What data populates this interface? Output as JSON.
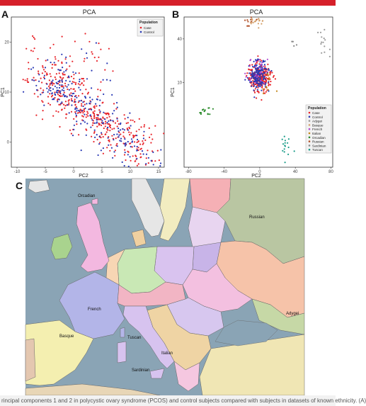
{
  "figure": {
    "panel_a_letter": "A",
    "panel_b_letter": "B",
    "panel_c_letter": "C",
    "caption": "rincipal components 1 and 2 in polycystic ovary syndrome (PCOS) and control subjects compared with subjects in datasets of known ethnicity. (A)"
  },
  "colors": {
    "case": "#e8242a",
    "control": "#2a3ab5",
    "adygei": "#9a9a9a",
    "basque": "#d4a06a",
    "french": "#b24ad0",
    "italian": "#c3871a",
    "orcadian": "#2a8a2a",
    "russian": "#b2522a",
    "sardinian": "#888888",
    "tuscan": "#1c9d8a",
    "topbar": "#d6202a"
  },
  "chart_data": [
    {
      "type": "scatter",
      "title": "PCA",
      "xlabel": "PC2",
      "ylabel": "PC1",
      "xlim": [
        -11,
        16
      ],
      "ylim": [
        -5,
        25
      ],
      "xticks": [
        -10,
        -5,
        0,
        5,
        10,
        15
      ],
      "yticks": [
        0,
        10,
        20
      ],
      "legend": {
        "title": "Population",
        "entries": [
          "Case",
          "Control"
        ],
        "placement": "top-right"
      },
      "series": [
        {
          "name": "Case",
          "color": "#e8242a",
          "count": 450,
          "distribution": "elongated cloud, densest near PC2 -3 to -1, PC1 8 to 15, extending down-right to PC2 14, PC1 -4"
        },
        {
          "name": "Control",
          "color": "#2a3ab5",
          "count": 260,
          "distribution": "overlapping the Case cloud"
        }
      ]
    },
    {
      "type": "scatter",
      "title": "PCA",
      "xlabel": "PC2",
      "ylabel": "PC1",
      "xlim": [
        -85,
        82
      ],
      "ylim": [
        -48,
        55
      ],
      "xticks": [
        -80,
        -40,
        0,
        40,
        80
      ],
      "yticks": [
        10,
        40
      ],
      "legend": {
        "title": "Population",
        "entries": [
          "Case",
          "Control",
          "Adygei",
          "Basque",
          "French",
          "Italian",
          "Orcadian",
          "Russian",
          "Sardinian",
          "Tuscan"
        ],
        "placement": "bottom-right"
      },
      "series": [
        {
          "name": "Case",
          "color": "#e8242a",
          "center": [
            0,
            14
          ],
          "spread": [
            6,
            5
          ],
          "count": 240
        },
        {
          "name": "Control",
          "color": "#2a3ab5",
          "center": [
            -1,
            15
          ],
          "spread": [
            6,
            5
          ],
          "count": 170
        },
        {
          "name": "Adygei",
          "color": "#9a9a9a",
          "center": [
            73,
            38
          ],
          "spread": [
            4,
            5
          ],
          "count": 14
        },
        {
          "name": "Basque",
          "color": "#d4a06a",
          "center": [
            -3,
            52
          ],
          "spread": [
            5,
            2
          ],
          "count": 18
        },
        {
          "name": "French",
          "color": "#b24ad0",
          "center": [
            -2,
            18
          ],
          "spread": [
            6,
            5
          ],
          "count": 28
        },
        {
          "name": "Italian",
          "color": "#c3871a",
          "center": [
            8,
            8
          ],
          "spread": [
            4,
            3
          ],
          "count": 10
        },
        {
          "name": "Orcadian",
          "color": "#2a8a2a",
          "center": [
            -60,
            -9
          ],
          "spread": [
            4,
            2
          ],
          "count": 16
        },
        {
          "name": "Russian",
          "color": "#b2522a",
          "center": [
            -10,
            52
          ],
          "spread": [
            3,
            2
          ],
          "count": 10
        },
        {
          "name": "Sardinian",
          "color": "#888888",
          "center": [
            38,
            37
          ],
          "spread": [
            2,
            2
          ],
          "count": 4
        },
        {
          "name": "Tuscan",
          "color": "#1c9d8a",
          "center": [
            30,
            -33
          ],
          "spread": [
            3,
            4
          ],
          "count": 16
        }
      ]
    }
  ],
  "map": {
    "labels": [
      "Orcadian",
      "Russian",
      "French",
      "Adygei",
      "Basque",
      "Tuscan",
      "Italian",
      "Sardinian"
    ],
    "sea_color": "#8aa4b5"
  }
}
